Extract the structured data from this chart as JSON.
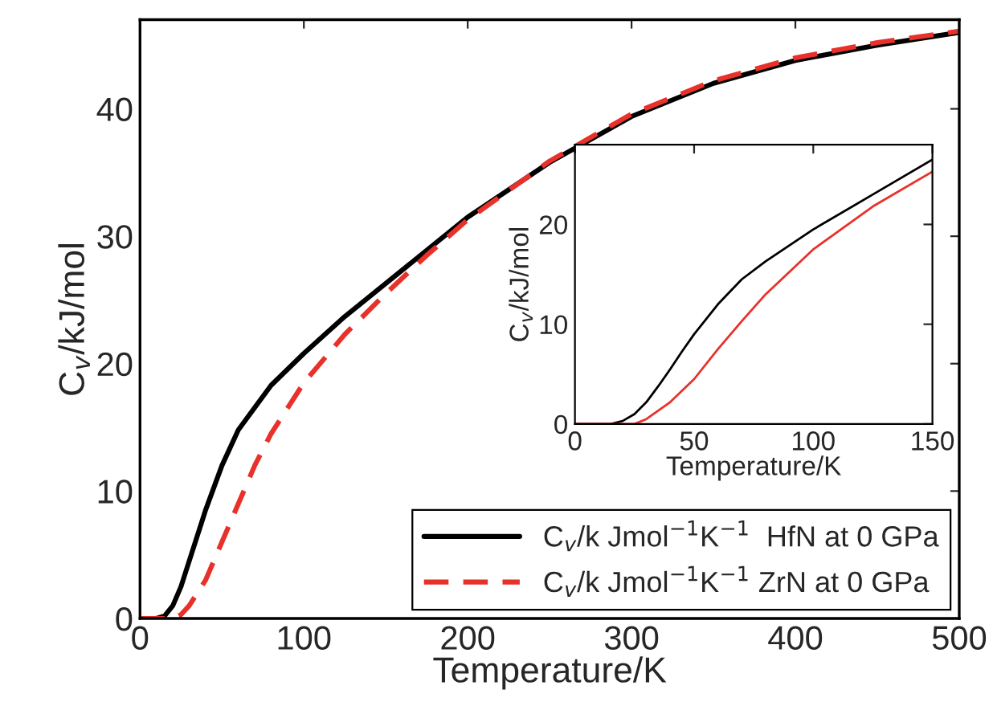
{
  "chart_data": [
    {
      "type": "line",
      "xlabel": "Temperature/K",
      "ylabel": "C$_{v}$/kJ/mol",
      "xlim": [
        0,
        500
      ],
      "ylim": [
        0,
        47
      ],
      "xticks": [
        0,
        100,
        200,
        300,
        400,
        500
      ],
      "yticks": [
        0,
        10,
        20,
        30,
        40
      ],
      "grid": false,
      "legend": "bottom right",
      "marker": "none",
      "series": [
        {
          "name": "C$_{v}$/k Jmol$^{−1}$K$^{−1}$  HfN at 0 GPa",
          "color": "#000000",
          "line_style": "solid",
          "x": [
            0,
            10,
            15,
            20,
            25,
            30,
            40,
            50,
            60,
            80,
            100,
            125,
            150,
            200,
            250,
            300,
            350,
            400,
            450,
            500
          ],
          "values": [
            0,
            0,
            0.2,
            1,
            2.5,
            4.5,
            8.5,
            12,
            14.8,
            18.3,
            20.8,
            23.7,
            26.3,
            31.5,
            35.8,
            39.4,
            42,
            43.8,
            45,
            46
          ]
        },
        {
          "name": "C$_{v}$/k Jmol$^{−1}$K$^{−1}$ ZrN at 0 GPa",
          "color": "#e8312a",
          "line_style": "dashed",
          "x": [
            0,
            20,
            25,
            30,
            40,
            50,
            60,
            70,
            80,
            100,
            125,
            150,
            175,
            200,
            250,
            300,
            350,
            400,
            450,
            500
          ],
          "values": [
            0,
            0,
            0.3,
            1,
            3,
            6,
            9,
            12,
            14.5,
            18.5,
            22.3,
            25.5,
            28.5,
            31.3,
            35.9,
            39.6,
            42.2,
            44,
            45.2,
            46.1
          ]
        }
      ]
    },
    {
      "type": "line",
      "xlabel": "Temperature/K",
      "ylabel": "C$_{v}$/kJ/mol",
      "xlim": [
        0,
        150
      ],
      "ylim": [
        0,
        28
      ],
      "xticks": [
        0,
        50,
        100,
        150
      ],
      "yticks": [
        0,
        10,
        20
      ],
      "grid": false,
      "marker": "none",
      "series": [
        {
          "color": "#000000",
          "line_style": "solid",
          "x": [
            0,
            15,
            20,
            25,
            30,
            35,
            40,
            45,
            50,
            60,
            70,
            80,
            100,
            125,
            150
          ],
          "values": [
            0,
            0,
            0.3,
            1,
            2.2,
            3.8,
            5.5,
            7.3,
            9,
            12,
            14.5,
            16.3,
            19.5,
            23,
            26.5
          ]
        },
        {
          "color": "#e8312a",
          "line_style": "solid",
          "x": [
            0,
            25,
            30,
            40,
            50,
            60,
            70,
            80,
            100,
            125,
            150
          ],
          "values": [
            0,
            0,
            0.5,
            2.2,
            4.5,
            7.5,
            10.3,
            13,
            17.5,
            21.8,
            25.3
          ]
        }
      ]
    }
  ]
}
